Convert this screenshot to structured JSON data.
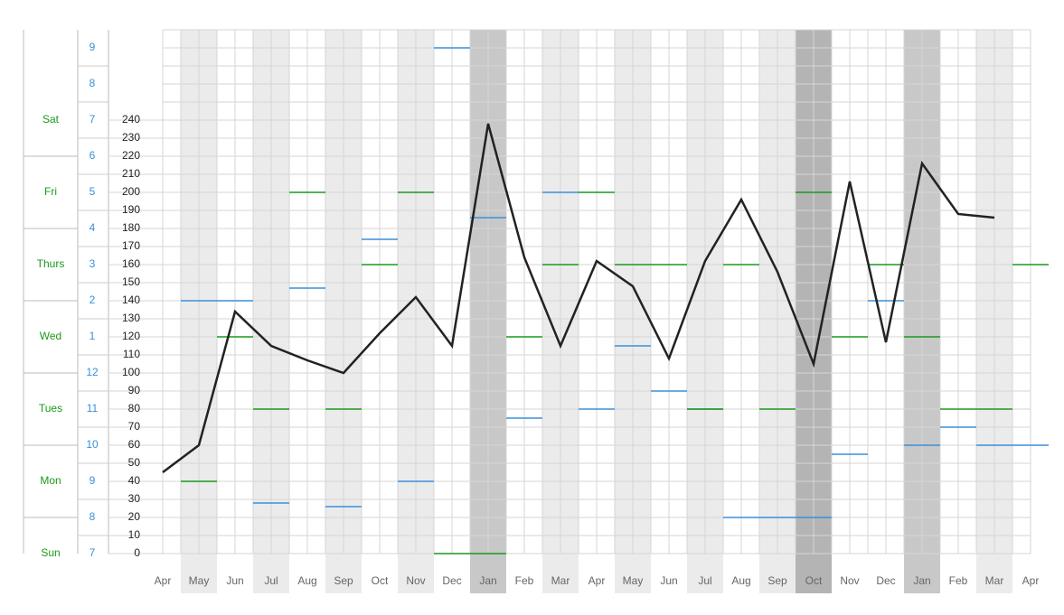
{
  "chart_data": {
    "type": "line",
    "categories": [
      "Apr",
      "May",
      "Jun",
      "Jul",
      "Aug",
      "Sep",
      "Oct",
      "Nov",
      "Dec",
      "Jan",
      "Feb",
      "Mar",
      "Apr",
      "May",
      "Jun",
      "Jul",
      "Aug",
      "Sep",
      "Oct",
      "Nov",
      "Dec",
      "Jan",
      "Feb",
      "Mar",
      "Apr"
    ],
    "band_colors": [
      null,
      "#ebebeb",
      null,
      "#ebebeb",
      null,
      "#ebebeb",
      null,
      "#ebebeb",
      null,
      "#c8c8c8",
      null,
      "#ebebeb",
      null,
      "#ebebeb",
      null,
      "#ebebeb",
      null,
      "#ebebeb",
      "#b4b4b4",
      null,
      null,
      "#c8c8c8",
      null,
      "#ebebeb",
      null
    ],
    "series": [
      {
        "color": "#222222",
        "values": [
          45,
          60,
          134,
          115,
          107,
          100,
          122,
          142,
          115,
          238,
          164,
          115,
          162,
          148,
          108,
          162,
          196,
          156,
          105,
          206,
          117,
          216,
          188,
          186,
          null
        ]
      },
      {
        "color": "#3a8fd8",
        "axis": "y2",
        "values": [
          null,
          14,
          14,
          8.4,
          14.35,
          8.3,
          15.7,
          9,
          21,
          16.3,
          10.75,
          17,
          11,
          12.75,
          11.5,
          11,
          8,
          8,
          8,
          9.75,
          14,
          10,
          10.5,
          10,
          10
        ]
      },
      {
        "color": "#1a9a1a",
        "axis": "y3",
        "values": [
          null,
          1,
          3,
          2,
          5,
          2,
          4,
          5,
          0,
          0,
          3,
          4,
          5,
          4,
          4,
          2,
          4,
          2,
          5,
          3,
          4,
          3,
          2,
          2,
          4
        ]
      }
    ],
    "ylim": [
      0,
      290
    ],
    "yticks": [
      0,
      10,
      20,
      30,
      40,
      50,
      60,
      70,
      80,
      90,
      100,
      110,
      120,
      130,
      140,
      150,
      160,
      170,
      180,
      190,
      200,
      210,
      220,
      230,
      240
    ],
    "y2lim": [
      7,
      21.5
    ],
    "y2ticks": [
      7,
      8,
      9,
      10,
      11,
      12,
      {
        "value": 13,
        "label": "1"
      },
      {
        "value": 14,
        "label": "2"
      },
      {
        "value": 15,
        "label": "3"
      },
      {
        "value": 16,
        "label": "4"
      },
      {
        "value": 17,
        "label": "5"
      },
      {
        "value": 18,
        "label": "6"
      },
      {
        "value": 19,
        "label": "7"
      },
      {
        "value": 20,
        "label": "8"
      },
      {
        "value": 21,
        "label": "9"
      }
    ],
    "y3lim": [
      0,
      7.25
    ],
    "y3ticks": [
      {
        "value": 0,
        "label": "Sun"
      },
      {
        "value": 1,
        "label": "Mon"
      },
      {
        "value": 2,
        "label": "Tues"
      },
      {
        "value": 3,
        "label": "Wed"
      },
      {
        "value": 4,
        "label": "Thurs"
      },
      {
        "value": 5,
        "label": "Fri"
      },
      {
        "value": 6,
        "label": "Sat"
      }
    ],
    "grid": true
  }
}
